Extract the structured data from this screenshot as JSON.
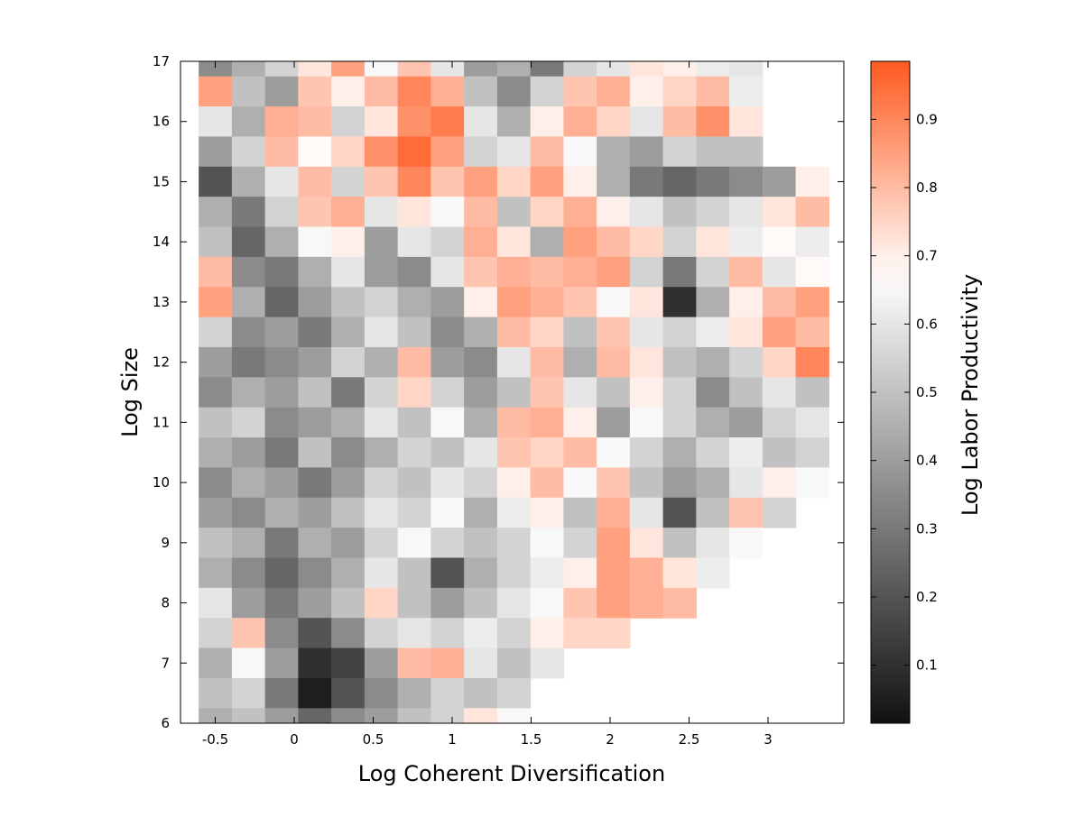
{
  "chart_data": {
    "type": "heatmap",
    "title": "",
    "xlabel": "Log Coherent Diversification",
    "ylabel": "Log Size",
    "colorbar_label": "Log Labor Productivity",
    "xlim": [
      -0.72,
      3.48
    ],
    "ylim": [
      6,
      17
    ],
    "x_ticks": [
      "-0.5",
      "0",
      "0.5",
      "1",
      "1.5",
      "2",
      "2.5",
      "3"
    ],
    "x_tick_values": [
      -0.5,
      0,
      0.5,
      1,
      1.5,
      2,
      2.5,
      3
    ],
    "y_ticks": [
      "6",
      "7",
      "8",
      "9",
      "10",
      "11",
      "12",
      "13",
      "14",
      "15",
      "16",
      "17"
    ],
    "y_tick_values": [
      6,
      7,
      8,
      9,
      10,
      11,
      12,
      13,
      14,
      15,
      16,
      17
    ],
    "colorbar_range": [
      0.015,
      0.985
    ],
    "colorbar_ticks": [
      "0.1",
      "0.2",
      "0.3",
      "0.4",
      "0.5",
      "0.6",
      "0.7",
      "0.8",
      "0.9"
    ],
    "colorbar_tick_values": [
      0.1,
      0.2,
      0.3,
      0.4,
      0.5,
      0.6,
      0.7,
      0.8,
      0.9
    ],
    "colormap": {
      "low": "#111111",
      "mid": "#ffffff",
      "mid_value": 0.67,
      "high": "#ff5a1f"
    },
    "grid_x": [
      -0.5,
      -0.29,
      -0.08,
      0.13,
      0.34,
      0.55,
      0.76,
      0.97,
      1.18,
      1.39,
      1.6,
      1.81,
      2.02,
      2.23,
      2.44,
      2.65,
      2.86,
      3.07,
      3.28
    ],
    "grid_y": [
      17,
      16.5,
      16,
      15.5,
      15,
      14.5,
      14,
      13.5,
      13,
      12.5,
      12,
      11.5,
      11,
      10.5,
      10,
      9.5,
      9,
      8.5,
      8,
      7.5,
      7,
      6.5,
      6
    ],
    "values": [
      [
        0.35,
        0.45,
        0.55,
        0.72,
        0.85,
        0.65,
        0.78,
        0.6,
        0.4,
        0.45,
        0.3,
        0.55,
        0.6,
        0.72,
        0.7,
        0.62,
        0.6,
        null,
        null
      ],
      [
        0.85,
        0.5,
        0.4,
        0.78,
        0.7,
        0.8,
        0.9,
        0.82,
        0.5,
        0.35,
        0.55,
        0.78,
        0.82,
        0.7,
        0.75,
        0.8,
        0.62,
        null,
        null
      ],
      [
        0.6,
        0.45,
        0.82,
        0.8,
        0.55,
        0.72,
        0.88,
        0.92,
        0.6,
        0.45,
        0.7,
        0.82,
        0.75,
        0.6,
        0.8,
        0.88,
        0.72,
        null,
        null
      ],
      [
        0.4,
        0.55,
        0.8,
        0.68,
        0.75,
        0.88,
        0.95,
        0.85,
        0.55,
        0.6,
        0.8,
        0.65,
        0.45,
        0.4,
        0.55,
        0.5,
        0.5,
        null,
        null
      ],
      [
        0.2,
        0.45,
        0.6,
        0.8,
        0.55,
        0.78,
        0.9,
        0.78,
        0.85,
        0.75,
        0.85,
        0.7,
        0.45,
        0.3,
        0.25,
        0.3,
        0.35,
        0.4,
        0.7
      ],
      [
        0.45,
        0.3,
        0.55,
        0.78,
        0.82,
        0.6,
        0.72,
        0.65,
        0.8,
        0.5,
        0.75,
        0.82,
        0.7,
        0.6,
        0.5,
        0.55,
        0.6,
        0.72,
        0.8
      ],
      [
        0.5,
        0.25,
        0.45,
        0.65,
        0.7,
        0.4,
        0.6,
        0.55,
        0.82,
        0.72,
        0.45,
        0.85,
        0.8,
        0.75,
        0.55,
        0.72,
        0.62,
        0.68,
        0.62
      ],
      [
        0.8,
        0.35,
        0.3,
        0.45,
        0.6,
        0.4,
        0.35,
        0.6,
        0.78,
        0.82,
        0.8,
        0.82,
        0.85,
        0.55,
        0.3,
        0.55,
        0.8,
        0.6,
        0.68
      ],
      [
        0.85,
        0.45,
        0.25,
        0.4,
        0.5,
        0.55,
        0.45,
        0.4,
        0.7,
        0.85,
        0.82,
        0.78,
        0.65,
        0.72,
        0.1,
        0.45,
        0.7,
        0.8,
        0.85
      ],
      [
        0.55,
        0.35,
        0.4,
        0.3,
        0.45,
        0.6,
        0.5,
        0.35,
        0.45,
        0.8,
        0.75,
        0.5,
        0.78,
        0.6,
        0.55,
        0.62,
        0.72,
        0.85,
        0.8
      ],
      [
        0.4,
        0.3,
        0.35,
        0.4,
        0.55,
        0.45,
        0.8,
        0.4,
        0.35,
        0.6,
        0.8,
        0.45,
        0.8,
        0.72,
        0.5,
        0.45,
        0.55,
        0.75,
        0.9
      ],
      [
        0.35,
        0.45,
        0.4,
        0.5,
        0.3,
        0.55,
        0.75,
        0.55,
        0.4,
        0.5,
        0.78,
        0.6,
        0.5,
        0.7,
        0.55,
        0.35,
        0.5,
        0.6,
        0.5
      ],
      [
        0.5,
        0.55,
        0.35,
        0.4,
        0.45,
        0.6,
        0.5,
        0.65,
        0.45,
        0.8,
        0.82,
        0.7,
        0.4,
        0.65,
        0.55,
        0.45,
        0.4,
        0.55,
        0.6
      ],
      [
        0.45,
        0.4,
        0.3,
        0.5,
        0.35,
        0.45,
        0.55,
        0.5,
        0.6,
        0.78,
        0.75,
        0.8,
        0.65,
        0.55,
        0.45,
        0.55,
        0.62,
        0.5,
        0.55
      ],
      [
        0.35,
        0.45,
        0.4,
        0.3,
        0.4,
        0.55,
        0.5,
        0.6,
        0.55,
        0.7,
        0.8,
        0.65,
        0.78,
        0.5,
        0.4,
        0.45,
        0.6,
        0.7,
        0.65
      ],
      [
        0.4,
        0.35,
        0.45,
        0.4,
        0.5,
        0.6,
        0.55,
        0.65,
        0.45,
        0.62,
        0.7,
        0.5,
        0.82,
        0.6,
        0.2,
        0.5,
        0.78,
        0.55,
        null
      ],
      [
        0.5,
        0.45,
        0.3,
        0.45,
        0.4,
        0.55,
        0.65,
        0.55,
        0.5,
        0.55,
        0.65,
        0.55,
        0.85,
        0.72,
        0.5,
        0.6,
        0.65,
        null,
        null
      ],
      [
        0.45,
        0.35,
        0.25,
        0.35,
        0.45,
        0.6,
        0.5,
        0.2,
        0.45,
        0.55,
        0.62,
        0.7,
        0.85,
        0.82,
        0.72,
        0.62,
        null,
        null,
        null
      ],
      [
        0.6,
        0.4,
        0.3,
        0.4,
        0.5,
        0.75,
        0.5,
        0.4,
        0.5,
        0.6,
        0.65,
        0.78,
        0.85,
        0.82,
        0.8,
        null,
        null,
        null,
        null
      ],
      [
        0.55,
        0.78,
        0.35,
        0.2,
        0.35,
        0.55,
        0.6,
        0.55,
        0.62,
        0.55,
        0.7,
        0.75,
        0.75,
        null,
        null,
        null,
        null,
        null,
        null
      ],
      [
        0.45,
        0.65,
        0.4,
        0.1,
        0.15,
        0.4,
        0.8,
        0.82,
        0.6,
        0.5,
        0.6,
        null,
        null,
        null,
        null,
        null,
        null,
        null,
        null
      ],
      [
        0.5,
        0.55,
        0.3,
        0.05,
        0.2,
        0.35,
        0.45,
        0.55,
        0.5,
        0.55,
        null,
        null,
        null,
        null,
        null,
        null,
        null,
        null,
        null
      ],
      [
        0.45,
        0.5,
        0.4,
        0.25,
        0.35,
        0.4,
        0.5,
        0.55,
        0.72,
        0.65,
        null,
        null,
        null,
        null,
        null,
        null,
        null,
        null,
        null
      ]
    ]
  }
}
